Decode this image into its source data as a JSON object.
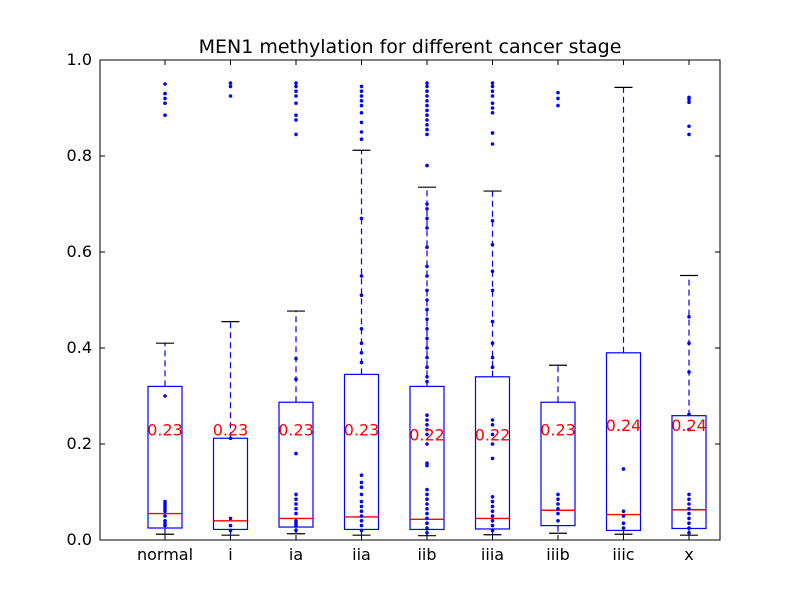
{
  "chart_data": {
    "type": "box",
    "title": "MEN1 methylation for different cancer stage",
    "xlabel": "",
    "ylabel": "",
    "ylim": [
      0.0,
      1.0
    ],
    "yticks": [
      "0.0",
      "0.2",
      "0.4",
      "0.6",
      "0.8",
      "1.0"
    ],
    "grid": false,
    "box_color": "#0000ff",
    "median_color": "#ff0000",
    "flier_color": "#0000ff",
    "cap_color": "#000000",
    "label_color": "#ff0000",
    "categories": [
      "normal",
      "i",
      "ia",
      "iia",
      "iib",
      "iiia",
      "iiib",
      "iiic",
      "x"
    ],
    "groups": [
      {
        "category": "normal",
        "whisker_low": 0.012,
        "q1": 0.025,
        "median": 0.055,
        "q3": 0.32,
        "whisker_high": 0.41,
        "mean_label": "0.23",
        "mean": 0.23,
        "fliers": [
          0.885,
          0.91,
          0.92,
          0.93,
          0.95,
          0.3,
          0.08,
          0.075,
          0.07,
          0.065,
          0.06,
          0.05,
          0.04,
          0.035,
          0.03
        ]
      },
      {
        "category": "i",
        "whisker_low": 0.01,
        "q1": 0.022,
        "median": 0.04,
        "q3": 0.212,
        "whisker_high": 0.455,
        "mean_label": "0.23",
        "mean": 0.23,
        "fliers": [
          0.925,
          0.945,
          0.952,
          0.212,
          0.045,
          0.03,
          0.02
        ]
      },
      {
        "category": "ia",
        "whisker_low": 0.013,
        "q1": 0.027,
        "median": 0.045,
        "q3": 0.287,
        "whisker_high": 0.477,
        "mean_label": "0.23",
        "mean": 0.23,
        "fliers": [
          0.845,
          0.875,
          0.885,
          0.91,
          0.925,
          0.935,
          0.945,
          0.952,
          0.378,
          0.335,
          0.18,
          0.095,
          0.085,
          0.075,
          0.065,
          0.055,
          0.04,
          0.035,
          0.03,
          0.02
        ]
      },
      {
        "category": "iia",
        "whisker_low": 0.01,
        "q1": 0.022,
        "median": 0.048,
        "q3": 0.345,
        "whisker_high": 0.812,
        "mean_label": "0.23",
        "mean": 0.23,
        "fliers": [
          0.835,
          0.85,
          0.87,
          0.89,
          0.905,
          0.915,
          0.925,
          0.935,
          0.945,
          0.67,
          0.55,
          0.51,
          0.44,
          0.41,
          0.39,
          0.37,
          0.135,
          0.12,
          0.11,
          0.095,
          0.08,
          0.07,
          0.06,
          0.05,
          0.04,
          0.03,
          0.02
        ]
      },
      {
        "category": "iib",
        "whisker_low": 0.009,
        "q1": 0.022,
        "median": 0.043,
        "q3": 0.32,
        "whisker_high": 0.735,
        "mean_label": "0.22",
        "mean": 0.22,
        "fliers": [
          0.78,
          0.845,
          0.855,
          0.865,
          0.875,
          0.885,
          0.895,
          0.905,
          0.915,
          0.925,
          0.935,
          0.945,
          0.952,
          0.7,
          0.69,
          0.67,
          0.65,
          0.61,
          0.57,
          0.55,
          0.52,
          0.5,
          0.48,
          0.46,
          0.44,
          0.42,
          0.4,
          0.38,
          0.36,
          0.34,
          0.33,
          0.26,
          0.25,
          0.24,
          0.23,
          0.22,
          0.2,
          0.16,
          0.155,
          0.105,
          0.095,
          0.085,
          0.075,
          0.065,
          0.055,
          0.045,
          0.035,
          0.025,
          0.015
        ]
      },
      {
        "category": "iiia",
        "whisker_low": 0.011,
        "q1": 0.023,
        "median": 0.045,
        "q3": 0.34,
        "whisker_high": 0.727,
        "mean_label": "0.22",
        "mean": 0.22,
        "fliers": [
          0.825,
          0.848,
          0.89,
          0.9,
          0.91,
          0.925,
          0.935,
          0.945,
          0.952,
          0.665,
          0.615,
          0.56,
          0.52,
          0.455,
          0.41,
          0.38,
          0.36,
          0.25,
          0.24,
          0.22,
          0.2,
          0.17,
          0.09,
          0.08,
          0.07,
          0.06,
          0.05,
          0.04,
          0.03,
          0.02
        ]
      },
      {
        "category": "iiib",
        "whisker_low": 0.014,
        "q1": 0.03,
        "median": 0.062,
        "q3": 0.287,
        "whisker_high": 0.364,
        "mean_label": "0.23",
        "mean": 0.23,
        "fliers": [
          0.905,
          0.92,
          0.932,
          0.095,
          0.085,
          0.075,
          0.065,
          0.055,
          0.04
        ]
      },
      {
        "category": "iiic",
        "whisker_low": 0.012,
        "q1": 0.02,
        "median": 0.053,
        "q3": 0.39,
        "whisker_high": 0.943,
        "mean_label": "0.24",
        "mean": 0.24,
        "fliers": [
          0.148,
          0.06,
          0.05,
          0.035,
          0.025
        ]
      },
      {
        "category": "x",
        "whisker_low": 0.01,
        "q1": 0.024,
        "median": 0.063,
        "q3": 0.259,
        "whisker_high": 0.551,
        "mean_label": "0.24",
        "mean": 0.24,
        "fliers": [
          0.845,
          0.862,
          0.912,
          0.918,
          0.922,
          0.465,
          0.41,
          0.35,
          0.262,
          0.23,
          0.095,
          0.085,
          0.075,
          0.065,
          0.055,
          0.045,
          0.035,
          0.025,
          0.015
        ]
      }
    ]
  }
}
